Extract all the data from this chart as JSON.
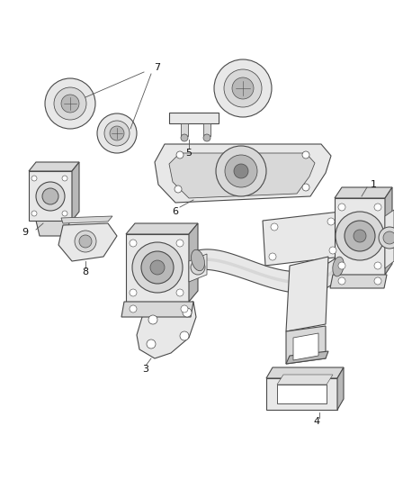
{
  "background_color": "#ffffff",
  "line_color": "#4a4a4a",
  "label_color": "#111111",
  "fig_width": 4.38,
  "fig_height": 5.33,
  "dpi": 100,
  "label_fontsize": 8.0,
  "annotation_lw": 0.6,
  "part_lw": 0.8,
  "fill_light": "#e8e8e8",
  "fill_mid": "#d8d8d8",
  "fill_dark": "#c8c8c8",
  "fill_darker": "#b8b8b8"
}
